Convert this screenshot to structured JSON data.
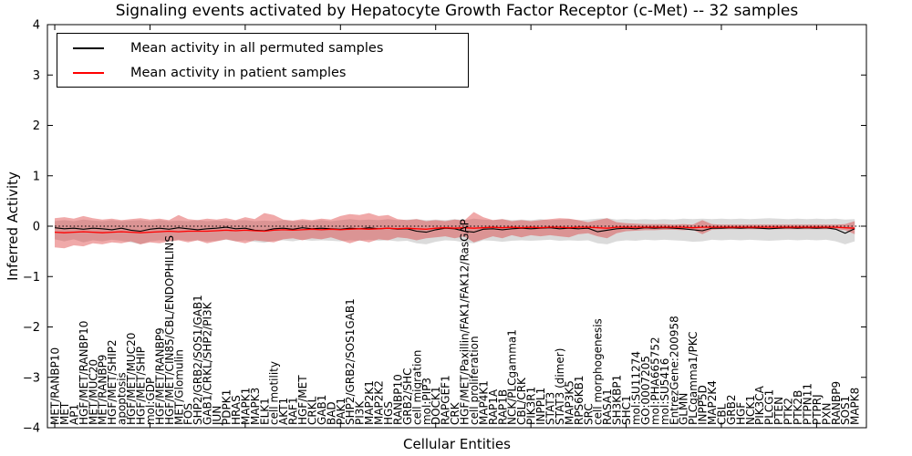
{
  "title": "Signaling events activated by Hepatocyte Growth Factor Receptor (c-Met) -- 32 samples",
  "axes": {
    "xlabel": "Cellular Entities",
    "ylabel": "Inferred Activity"
  },
  "legend": {
    "items": [
      {
        "label": "Mean activity in all permuted samples",
        "color": "#000000"
      },
      {
        "label": "Mean activity in patient samples",
        "color": "#ff0000"
      }
    ]
  },
  "chart_data": {
    "type": "line",
    "title": "Signaling events activated by Hepatocyte Growth Factor Receptor (c-Met) -- 32 samples",
    "xlabel": "Cellular Entities",
    "ylabel": "Inferred Activity",
    "ylim": [
      -4,
      4
    ],
    "yticks": [
      -4,
      -3,
      -2,
      -1,
      0,
      1,
      2,
      3,
      4
    ],
    "x_major_tick_step": 10,
    "grid": false,
    "legend_position": "upper left",
    "zero_line": {
      "y": 0,
      "style": "dotted",
      "color": "#000000"
    },
    "categories": [
      "MET/RANBP10",
      "MET",
      "AP1",
      "HGF/MET/RANBP10",
      "MET/MUC20",
      "MET/RANBP9",
      "HGF/MET/SHIP2",
      "apoptosis",
      "HGF/MET/MUC20",
      "HGF/MET/SHIP",
      "mol:GDP",
      "HGF/MET/RANBP9",
      "HGF/MET/CIN85/CBL/ENDOPHILINS",
      "MET/Glomulin",
      "FOS",
      "SHP2/GRB2/SOS1/GAB1",
      "GAB1/CRKL/SHP2/PI3K",
      "JUN",
      "PDPK1",
      "HRAS",
      "MAPK1",
      "MAPK3",
      "ELK1",
      "cell motility",
      "AKT1",
      "RAF1",
      "HGF/MET",
      "CRKL",
      "GAB1",
      "BAD",
      "PAK1",
      "SHP2/GRB2/SOS1GAB1",
      "PI3K",
      "MAP2K1",
      "MAP2K2",
      "HGS",
      "RANBP10",
      "GRB2/SHC",
      "cell migration",
      "mol:PIP3",
      "DOCK1",
      "RAPGEF1",
      "CRK",
      "HGF/MET/Paxillin/FAK1/FAK12/RasGAP",
      "cell proliferation",
      "MAP4K1",
      "RAP1A",
      "RAP1B",
      "NCK/PLCgamma1",
      "CBL/CRK",
      "PIK3R1",
      "INPPL1",
      "STAT3",
      "STAT3 (dimer)",
      "MAP3K5",
      "RPS6KB1",
      "SRC",
      "cell morphogenesis",
      "RASA1",
      "SH3KBP1",
      "SHC1",
      "mol:SU11274",
      "GO:0007205",
      "mol:PHA665752",
      "mol:SU5416",
      "EntrezGene:200958",
      "GLMN",
      "PLCgamma1/PKC",
      "INPP5D",
      "MAP2K4",
      "CBL",
      "GRB2",
      "HGF",
      "NCK1",
      "PIK3CA",
      "PLCG1",
      "PTEN",
      "PTK2",
      "PTK2B",
      "PTPN11",
      "PTPRJ",
      "PXN",
      "RANBP9",
      "SOS1",
      "MAPK8"
    ],
    "series": [
      {
        "name": "Mean activity in all permuted samples",
        "color": "#000000",
        "line_width": 1.1,
        "band_color": "rgba(0,0,0,0.14)",
        "values": [
          -0.03,
          -0.05,
          -0.04,
          -0.06,
          -0.04,
          -0.05,
          -0.07,
          -0.04,
          -0.08,
          -0.1,
          -0.06,
          -0.04,
          -0.06,
          -0.03,
          -0.05,
          -0.07,
          -0.05,
          -0.04,
          -0.02,
          -0.05,
          -0.04,
          -0.08,
          -0.09,
          -0.05,
          -0.04,
          -0.06,
          -0.03,
          -0.05,
          -0.04,
          -0.05,
          -0.06,
          -0.04,
          -0.05,
          -0.03,
          -0.05,
          -0.04,
          -0.06,
          -0.05,
          -0.1,
          -0.12,
          -0.07,
          -0.04,
          -0.05,
          -0.1,
          -0.12,
          -0.06,
          -0.05,
          -0.07,
          -0.05,
          -0.04,
          -0.05,
          -0.04,
          -0.03,
          -0.05,
          -0.04,
          -0.05,
          -0.04,
          -0.11,
          -0.08,
          -0.05,
          -0.04,
          -0.05,
          -0.03,
          -0.04,
          -0.03,
          -0.04,
          -0.05,
          -0.07,
          -0.09,
          -0.04,
          -0.04,
          -0.03,
          -0.04,
          -0.03,
          -0.04,
          -0.05,
          -0.04,
          -0.03,
          -0.04,
          -0.03,
          -0.04,
          -0.03,
          -0.06,
          -0.14,
          -0.05
        ],
        "band_upper": [
          0.1,
          0.12,
          0.1,
          0.13,
          0.11,
          0.1,
          0.12,
          0.1,
          0.11,
          0.12,
          0.1,
          0.12,
          0.1,
          0.11,
          0.1,
          0.12,
          0.1,
          0.11,
          0.1,
          0.11,
          0.12,
          0.1,
          0.11,
          0.1,
          0.12,
          0.1,
          0.11,
          0.1,
          0.12,
          0.1,
          0.12,
          0.14,
          0.12,
          0.13,
          0.12,
          0.14,
          0.12,
          0.13,
          0.14,
          0.12,
          0.13,
          0.12,
          0.14,
          0.12,
          0.15,
          0.13,
          0.12,
          0.14,
          0.12,
          0.13,
          0.12,
          0.14,
          0.12,
          0.13,
          0.14,
          0.12,
          0.13,
          0.15,
          0.16,
          0.13,
          0.14,
          0.13,
          0.14,
          0.13,
          0.14,
          0.13,
          0.15,
          0.14,
          0.15,
          0.14,
          0.15,
          0.14,
          0.15,
          0.14,
          0.15,
          0.16,
          0.15,
          0.14,
          0.15,
          0.14,
          0.15,
          0.14,
          0.15,
          0.13,
          0.14
        ],
        "band_lower": [
          -0.26,
          -0.3,
          -0.26,
          -0.32,
          -0.28,
          -0.3,
          -0.27,
          -0.29,
          -0.32,
          -0.36,
          -0.3,
          -0.28,
          -0.3,
          -0.27,
          -0.29,
          -0.28,
          -0.3,
          -0.29,
          -0.27,
          -0.3,
          -0.28,
          -0.31,
          -0.33,
          -0.29,
          -0.28,
          -0.3,
          -0.27,
          -0.29,
          -0.28,
          -0.29,
          -0.3,
          -0.28,
          -0.29,
          -0.27,
          -0.29,
          -0.28,
          -0.3,
          -0.29,
          -0.34,
          -0.36,
          -0.31,
          -0.28,
          -0.29,
          -0.32,
          -0.34,
          -0.28,
          -0.29,
          -0.31,
          -0.29,
          -0.28,
          -0.29,
          -0.28,
          -0.27,
          -0.29,
          -0.28,
          -0.29,
          -0.28,
          -0.34,
          -0.36,
          -0.3,
          -0.28,
          -0.29,
          -0.27,
          -0.28,
          -0.27,
          -0.28,
          -0.29,
          -0.31,
          -0.3,
          -0.27,
          -0.28,
          -0.27,
          -0.28,
          -0.27,
          -0.28,
          -0.29,
          -0.28,
          -0.27,
          -0.28,
          -0.27,
          -0.28,
          -0.27,
          -0.3,
          -0.36,
          -0.3
        ]
      },
      {
        "name": "Mean activity in patient samples",
        "color": "#ff0000",
        "line_width": 1.3,
        "band_color": "rgba(220,50,50,0.42)",
        "values": [
          -0.12,
          -0.13,
          -0.12,
          -0.11,
          -0.12,
          -0.13,
          -0.12,
          -0.11,
          -0.12,
          -0.13,
          -0.12,
          -0.11,
          -0.1,
          -0.11,
          -0.1,
          -0.1,
          -0.1,
          -0.09,
          -0.08,
          -0.09,
          -0.08,
          -0.09,
          -0.1,
          -0.08,
          -0.07,
          -0.08,
          -0.07,
          -0.06,
          -0.07,
          -0.06,
          -0.07,
          -0.06,
          -0.05,
          -0.06,
          -0.05,
          -0.04,
          -0.05,
          -0.04,
          -0.05,
          -0.06,
          -0.04,
          -0.03,
          -0.04,
          -0.03,
          -0.04,
          -0.03,
          -0.02,
          -0.03,
          -0.02,
          -0.03,
          -0.02,
          -0.03,
          -0.02,
          -0.02,
          -0.03,
          -0.02,
          -0.02,
          -0.03,
          -0.04,
          -0.02,
          -0.02,
          -0.02,
          -0.02,
          -0.02,
          -0.02,
          -0.02,
          -0.02,
          -0.03,
          -0.02,
          -0.02,
          -0.02,
          -0.02,
          -0.02,
          -0.02,
          -0.02,
          -0.02,
          -0.02,
          -0.02,
          -0.02,
          -0.02,
          -0.02,
          -0.02,
          -0.02,
          -0.03,
          -0.04
        ],
        "band_upper": [
          0.16,
          0.18,
          0.15,
          0.2,
          0.16,
          0.13,
          0.15,
          0.12,
          0.14,
          0.16,
          0.13,
          0.15,
          0.12,
          0.22,
          0.14,
          0.12,
          0.15,
          0.13,
          0.16,
          0.12,
          0.18,
          0.14,
          0.26,
          0.22,
          0.13,
          0.11,
          0.14,
          0.12,
          0.15,
          0.13,
          0.2,
          0.24,
          0.22,
          0.26,
          0.2,
          0.22,
          0.14,
          0.12,
          0.14,
          0.1,
          0.12,
          0.1,
          0.13,
          0.11,
          0.28,
          0.18,
          0.12,
          0.14,
          0.1,
          0.12,
          0.1,
          0.12,
          0.14,
          0.16,
          0.15,
          0.12,
          0.08,
          0.12,
          0.16,
          0.08,
          0.06,
          0.05,
          0.04,
          0.04,
          0.04,
          0.03,
          0.04,
          0.03,
          0.12,
          0.04,
          0.03,
          0.03,
          0.03,
          0.03,
          0.03,
          0.03,
          0.03,
          0.03,
          0.03,
          0.03,
          0.03,
          0.03,
          0.03,
          0.04,
          0.1
        ],
        "band_lower": [
          -0.42,
          -0.44,
          -0.38,
          -0.4,
          -0.34,
          -0.36,
          -0.32,
          -0.34,
          -0.3,
          -0.36,
          -0.32,
          -0.34,
          -0.3,
          -0.28,
          -0.32,
          -0.28,
          -0.34,
          -0.3,
          -0.26,
          -0.3,
          -0.34,
          -0.28,
          -0.3,
          -0.32,
          -0.26,
          -0.24,
          -0.28,
          -0.24,
          -0.26,
          -0.22,
          -0.28,
          -0.34,
          -0.28,
          -0.32,
          -0.26,
          -0.28,
          -0.22,
          -0.24,
          -0.28,
          -0.24,
          -0.22,
          -0.2,
          -0.24,
          -0.2,
          -0.32,
          -0.26,
          -0.2,
          -0.24,
          -0.18,
          -0.22,
          -0.18,
          -0.2,
          -0.18,
          -0.2,
          -0.22,
          -0.16,
          -0.14,
          -0.2,
          -0.24,
          -0.14,
          -0.1,
          -0.09,
          -0.08,
          -0.08,
          -0.07,
          -0.07,
          -0.08,
          -0.07,
          -0.16,
          -0.07,
          -0.06,
          -0.06,
          -0.06,
          -0.06,
          -0.06,
          -0.06,
          -0.06,
          -0.06,
          -0.06,
          -0.06,
          -0.06,
          -0.06,
          -0.06,
          -0.08,
          -0.16
        ]
      }
    ]
  }
}
